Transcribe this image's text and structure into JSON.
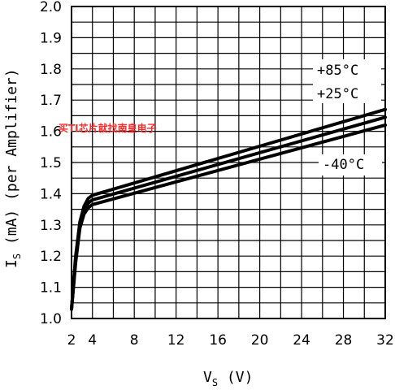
{
  "chart_data": {
    "type": "line",
    "xlabel": {
      "main": "V",
      "sub": "S",
      "unit": " (V)"
    },
    "ylabel": {
      "main": "I",
      "sub": "S",
      "unit": " (mA) (per Amplifier)"
    },
    "xlim": [
      2,
      32
    ],
    "ylim": [
      1.0,
      2.0
    ],
    "x_ticks": [
      2,
      4,
      8,
      12,
      16,
      20,
      24,
      28,
      32
    ],
    "y_ticks": [
      "1.0",
      "1.1",
      "1.2",
      "1.3",
      "1.4",
      "1.5",
      "1.6",
      "1.7",
      "1.8",
      "1.9",
      "2.0"
    ],
    "grid": true,
    "series": [
      {
        "name": "+85°C",
        "x": [
          2,
          2.4,
          2.8,
          3.2,
          3.6,
          4,
          32
        ],
        "y": [
          1.03,
          1.2,
          1.31,
          1.36,
          1.385,
          1.395,
          1.67
        ]
      },
      {
        "name": "+25°C",
        "x": [
          2,
          2.4,
          2.8,
          3.2,
          3.6,
          4,
          32
        ],
        "y": [
          1.03,
          1.19,
          1.3,
          1.345,
          1.37,
          1.38,
          1.645
        ]
      },
      {
        "name": "-40°C",
        "x": [
          2,
          2.4,
          2.8,
          3.2,
          3.6,
          4,
          32
        ],
        "y": [
          1.03,
          1.18,
          1.29,
          1.335,
          1.355,
          1.365,
          1.62
        ]
      }
    ],
    "annotations": [
      "+85°C",
      "+25°C",
      "-40°C"
    ],
    "watermark": "买TI芯片就找南皇电子"
  }
}
